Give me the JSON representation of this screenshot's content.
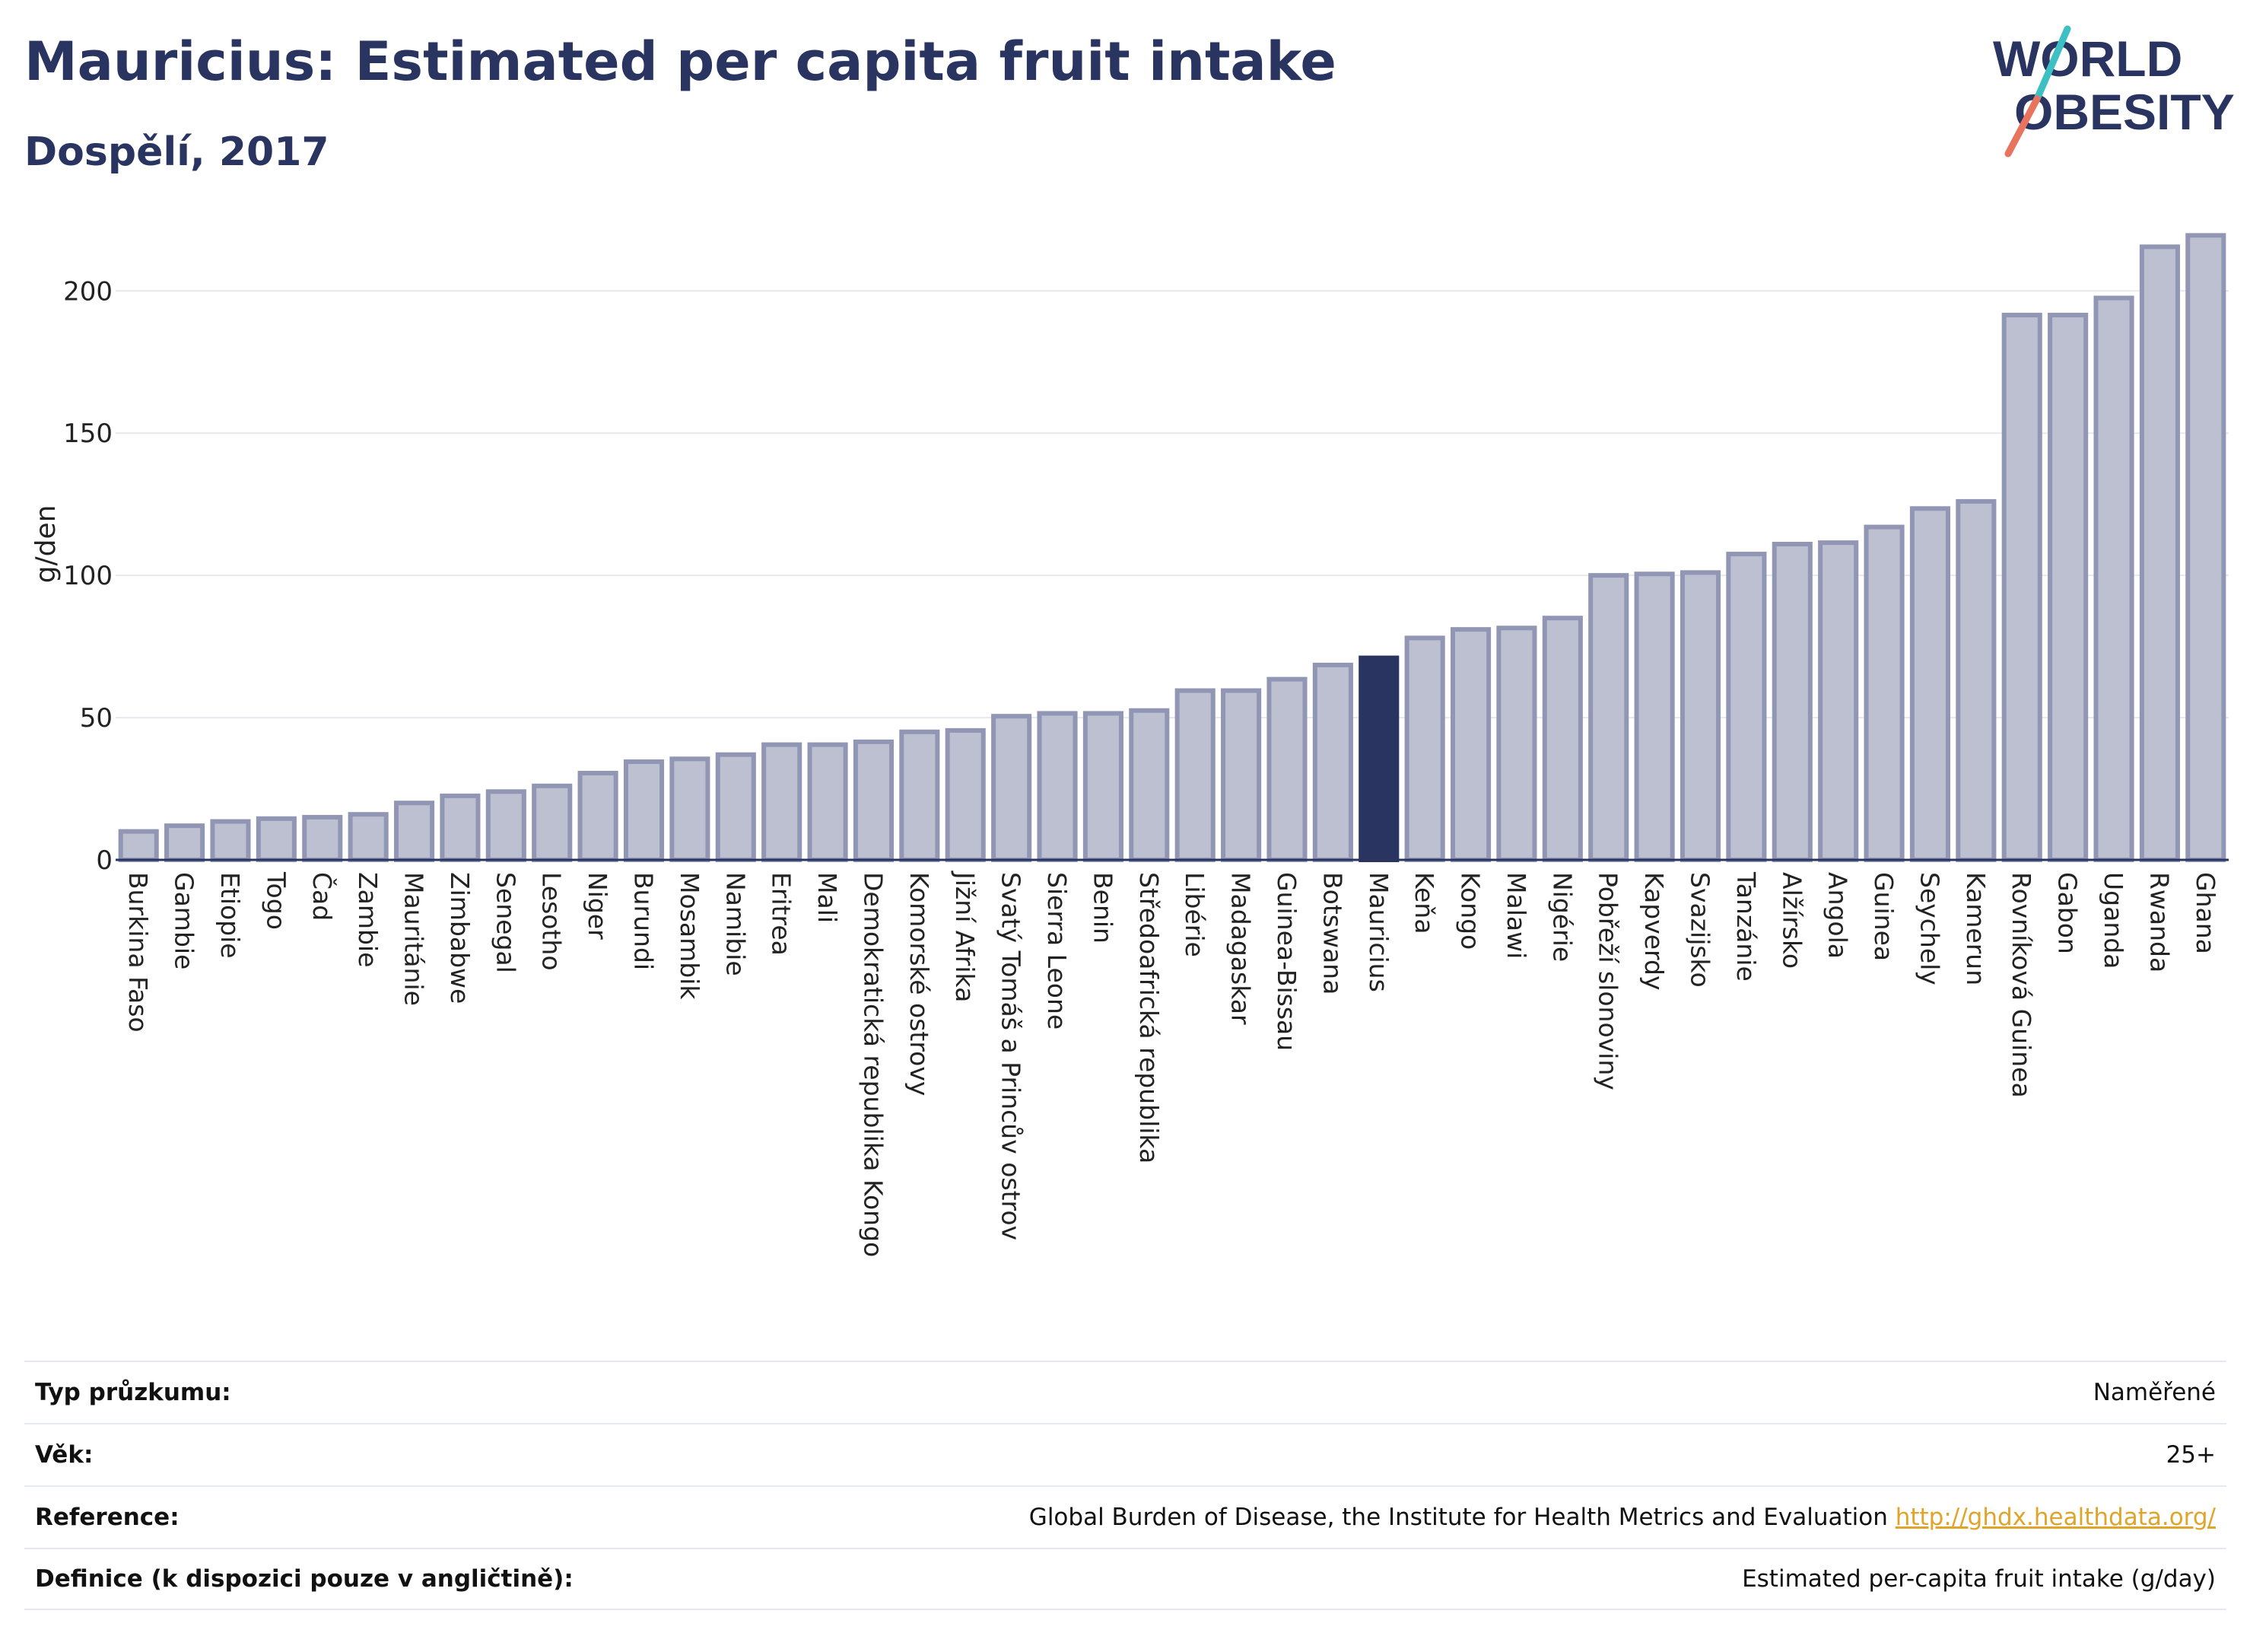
{
  "header": {
    "title": "Mauricius: Estimated per capita fruit intake",
    "subtitle": "Dospělí, 2017"
  },
  "logo": {
    "line1": "WORLD",
    "line2": "OBESITY",
    "slash_colors": [
      "#3dbfc3",
      "#e8735f"
    ]
  },
  "colors": {
    "bar": "#bcc0d0",
    "bar_border": "#9196b4",
    "highlight": "#2a3460",
    "text": "#2a3460"
  },
  "chart_data": {
    "type": "bar",
    "ylabel": "g/den",
    "xlabel": "",
    "ylim": [
      0,
      222
    ],
    "yticks": [
      0,
      50,
      100,
      150,
      200
    ],
    "grid": true,
    "highlight": "Mauricius",
    "categories": [
      "Burkina Faso",
      "Gambie",
      "Etiopie",
      "Togo",
      "Čad",
      "Zambie",
      "Mauritánie",
      "Zimbabwe",
      "Senegal",
      "Lesotho",
      "Niger",
      "Burundi",
      "Mosambik",
      "Namibie",
      "Eritrea",
      "Mali",
      "Demokratická republika Kongo",
      "Komorské ostrovy",
      "Jižní Afrika",
      "Svatý Tomáš a Princův ostrov",
      "Sierra Leone",
      "Benin",
      "Středoafrická republika",
      "Libérie",
      "Madagaskar",
      "Guinea-Bissau",
      "Botswana",
      "Mauricius",
      "Keňa",
      "Kongo",
      "Malawi",
      "Nigérie",
      "Pobřeží slonoviny",
      "Kapverdy",
      "Svazijsko",
      "Tanzánie",
      "Alžírsko",
      "Angola",
      "Guinea",
      "Seychely",
      "Kamerun",
      "Rovníková Guinea",
      "Gabon",
      "Uganda",
      "Rwanda",
      "Ghana"
    ],
    "values": [
      10,
      12,
      13.5,
      14.5,
      15,
      16,
      20,
      22.5,
      24,
      26,
      30.5,
      34.5,
      35.5,
      37,
      40.5,
      40.5,
      41.5,
      45,
      45.5,
      50.5,
      51.5,
      51.5,
      52.5,
      59.5,
      59.5,
      63.5,
      68.5,
      71,
      78,
      81,
      81.5,
      85,
      100,
      100.5,
      101,
      107.5,
      111,
      111.5,
      117,
      123.5,
      126,
      191.5,
      191.5,
      197.5,
      215.5,
      219.5
    ]
  },
  "meta": [
    {
      "label": "Typ průzkumu:",
      "value": "Naměřené"
    },
    {
      "label": "Věk:",
      "value": "25+"
    },
    {
      "label": "Reference:",
      "value": "Global Burden of Disease, the Institute for Health Metrics and Evaluation",
      "link": "http://ghdx.healthdata.org/"
    },
    {
      "label": "Definice (k dispozici pouze v angličtině):",
      "value": "Estimated per-capita fruit intake (g/day)"
    }
  ]
}
